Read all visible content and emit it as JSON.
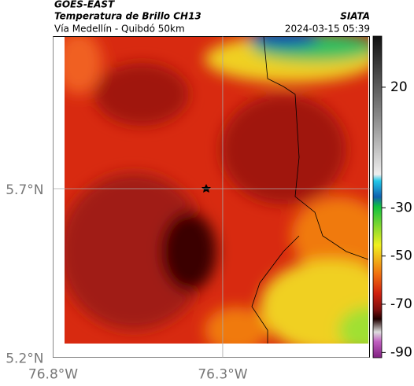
{
  "header": {
    "title": "GOES-EAST",
    "subtitle": "Temperatura de Brillo CH13",
    "source": "SIATA",
    "route": "Vía Medellín - Quibdó 50km",
    "datetime": "2024-03-15 05:39"
  },
  "map": {
    "xlim": [
      -76.8,
      -75.867
    ],
    "ylim": [
      5.2,
      6.151
    ],
    "xticks": [
      {
        "value": -76.8,
        "label": "76.8°W"
      },
      {
        "value": -76.3,
        "label": "76.3°W"
      }
    ],
    "yticks": [
      {
        "value": 5.7,
        "label": "5.7°N"
      },
      {
        "value": 5.2,
        "label": "5.2°N"
      }
    ],
    "grid": true
  },
  "colorbar": {
    "lim": [
      -92,
      41
    ],
    "ticks": [
      20,
      -30,
      -50,
      -70,
      -90
    ]
  }
}
